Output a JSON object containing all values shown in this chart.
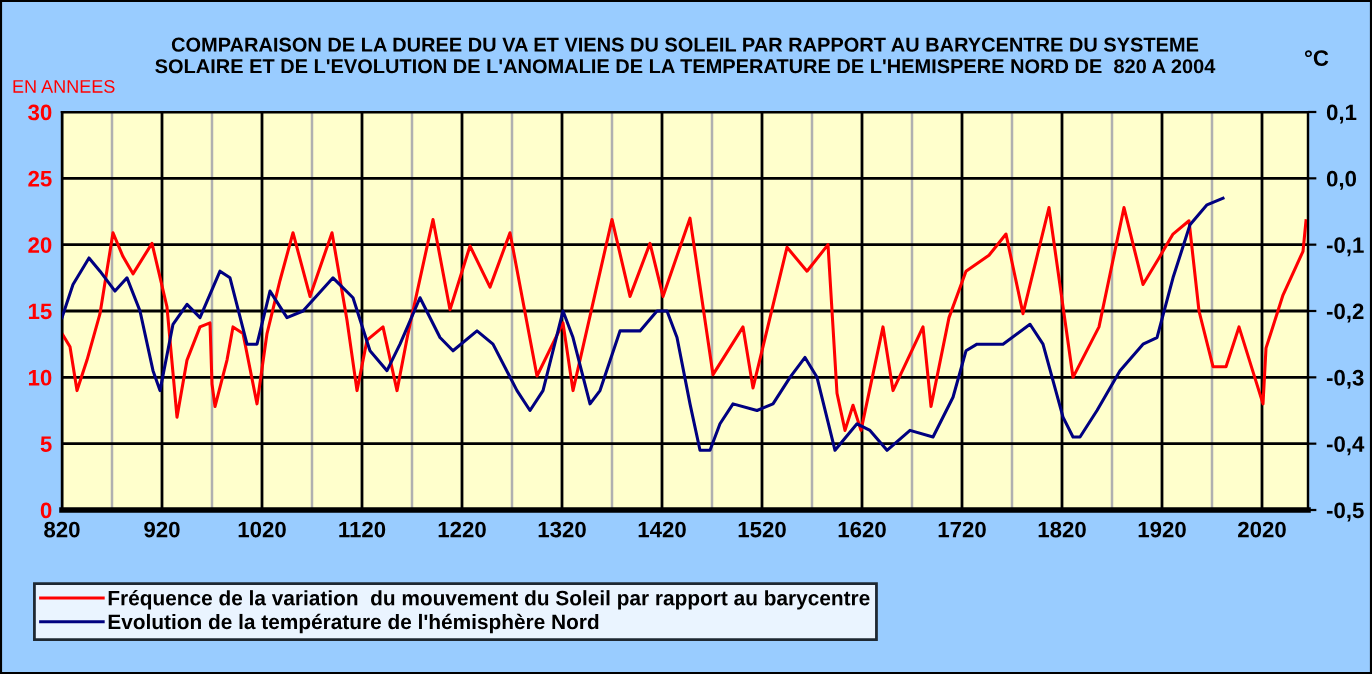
{
  "chart_data": {
    "type": "line",
    "title": "COMPARAISON DE LA DUREE DU VA ET VIENS DU SOLEIL PAR RAPPORT AU BARYCENTRE DU SYSTEME\nSOLAIRE ET DE L'EVOLUTION DE L'ANOMALIE DE LA TEMPERATURE DE L'HEMISPERE NORD DE  820 A 2004",
    "ylabel": "EN ANNEES",
    "y2label": "°C",
    "xlim": [
      820,
      2066
    ],
    "xticks": [
      820,
      {
        "value": 870,
        "label": null
      },
      920,
      {
        "value": 970,
        "label": null
      },
      1020,
      {
        "value": 1070,
        "label": null
      },
      1120,
      {
        "value": 1170,
        "label": null
      },
      1220,
      {
        "value": 1270,
        "label": null
      },
      1320,
      {
        "value": 1370,
        "label": null
      },
      1420,
      {
        "value": 1470,
        "label": null
      },
      1520,
      {
        "value": 1570,
        "label": null
      },
      1620,
      {
        "value": 1670,
        "label": null
      },
      1720,
      {
        "value": 1770,
        "label": null
      },
      1820,
      {
        "value": 1870,
        "label": null
      },
      1920,
      {
        "value": 1970,
        "label": null
      },
      2020
    ],
    "ylim": [
      0,
      30
    ],
    "yticks": [
      0,
      5,
      10,
      15,
      20,
      25,
      30
    ],
    "y2lim": [
      -0.5,
      0.1
    ],
    "y2ticks": [
      {
        "value": -0.5,
        "label": "-0,5"
      },
      {
        "value": -0.4,
        "label": "-0,4"
      },
      {
        "value": -0.3,
        "label": "-0,3"
      },
      {
        "value": -0.2,
        "label": "-0,2"
      },
      {
        "value": -0.1,
        "label": "-0,1"
      },
      {
        "value": 0.0,
        "label": "0,0"
      },
      {
        "value": 0.1,
        "label": "0,1"
      }
    ],
    "grid": true,
    "legend": "bottom",
    "marker": "none",
    "line_style": "solid",
    "series": [
      {
        "name": "Fréquence de la variation  du mouvement du Soleil par rapport au barycentre",
        "color": "#ff0000",
        "x": [
          820,
          828,
          835,
          845,
          858,
          871,
          881,
          891,
          910,
          925,
          935,
          945,
          958,
          968,
          970,
          973,
          985,
          991,
          1001,
          1015,
          1025,
          1038,
          1051,
          1068,
          1090,
          1105,
          1115,
          1125,
          1141,
          1155,
          1166,
          1191,
          1208,
          1228,
          1248,
          1268,
          1295,
          1321,
          1331,
          1341,
          1370,
          1388,
          1408,
          1421,
          1448,
          1471,
          1501,
          1511,
          1545,
          1565,
          1586,
          1595,
          1603,
          1611,
          1619,
          1641,
          1651,
          1681,
          1689,
          1707,
          1724,
          1747,
          1764,
          1781,
          1807,
          1831,
          1857,
          1882,
          1901,
          1917,
          1931,
          1947,
          1957,
          1971,
          1984,
          1997,
          2021,
          2024,
          2041,
          2061,
          2064
        ],
        "values": [
          13.3,
          12.3,
          9,
          11.3,
          14.8,
          20.9,
          19.1,
          17.8,
          20.1,
          15.3,
          7.0,
          11.3,
          13.8,
          14.1,
          9.5,
          7.8,
          11.3,
          13.8,
          13.3,
          8.0,
          13.3,
          17.3,
          20.9,
          16.1,
          20.9,
          14.3,
          9,
          12.8,
          13.8,
          9,
          13.3,
          21.9,
          15.1,
          19.9,
          16.8,
          20.9,
          10.1,
          14.1,
          9,
          12.3,
          21.9,
          16.1,
          20.1,
          16.1,
          22.0,
          10.2,
          13.8,
          9.2,
          19.8,
          18,
          20,
          8.8,
          6,
          7.9,
          6,
          13.8,
          9,
          13.8,
          7.8,
          14.5,
          18,
          19.2,
          20.8,
          14.8,
          22.8,
          10,
          13.8,
          22.8,
          17,
          19,
          20.8,
          21.8,
          15,
          10.8,
          10.8,
          13.8,
          8,
          12.2,
          16.2,
          19.5,
          21.8
        ]
      },
      {
        "name": "Evolution de la température de l'hémisphère Nord",
        "color": "#000080",
        "axis": "y2",
        "x": [
          820,
          831,
          847,
          858,
          873,
          885,
          898,
          911,
          918,
          931,
          945,
          958,
          978,
          988,
          1005,
          1015,
          1028,
          1045,
          1061,
          1091,
          1111,
          1128,
          1145,
          1158,
          1178,
          1198,
          1211,
          1235,
          1251,
          1275,
          1288,
          1301,
          1321,
          1331,
          1348,
          1358,
          1378,
          1398,
          1415,
          1425,
          1435,
          1448,
          1458,
          1468,
          1478,
          1491,
          1515,
          1531,
          1548,
          1563,
          1575,
          1593,
          1615,
          1628,
          1645,
          1668,
          1691,
          1711,
          1724,
          1735,
          1761,
          1788,
          1801,
          1821,
          1831,
          1838,
          1855,
          1878,
          1901,
          1915,
          1931,
          1948,
          1965,
          1981
        ],
        "values": [
          -0.21,
          -0.16,
          -0.12,
          -0.14,
          -0.17,
          -0.15,
          -0.2,
          -0.29,
          -0.32,
          -0.22,
          -0.19,
          -0.21,
          -0.14,
          -0.15,
          -0.25,
          -0.25,
          -0.17,
          -0.21,
          -0.2,
          -0.15,
          -0.18,
          -0.26,
          -0.29,
          -0.25,
          -0.18,
          -0.24,
          -0.26,
          -0.23,
          -0.25,
          -0.32,
          -0.35,
          -0.32,
          -0.2,
          -0.24,
          -0.34,
          -0.32,
          -0.23,
          -0.23,
          -0.2,
          -0.2,
          -0.24,
          -0.34,
          -0.41,
          -0.41,
          -0.37,
          -0.34,
          -0.35,
          -0.34,
          -0.3,
          -0.27,
          -0.3,
          -0.41,
          -0.37,
          -0.38,
          -0.41,
          -0.38,
          -0.39,
          -0.33,
          -0.26,
          -0.25,
          -0.25,
          -0.22,
          -0.25,
          -0.36,
          -0.39,
          -0.39,
          -0.35,
          -0.29,
          -0.25,
          -0.24,
          -0.15,
          -0.07,
          -0.04,
          -0.03
        ]
      }
    ]
  }
}
